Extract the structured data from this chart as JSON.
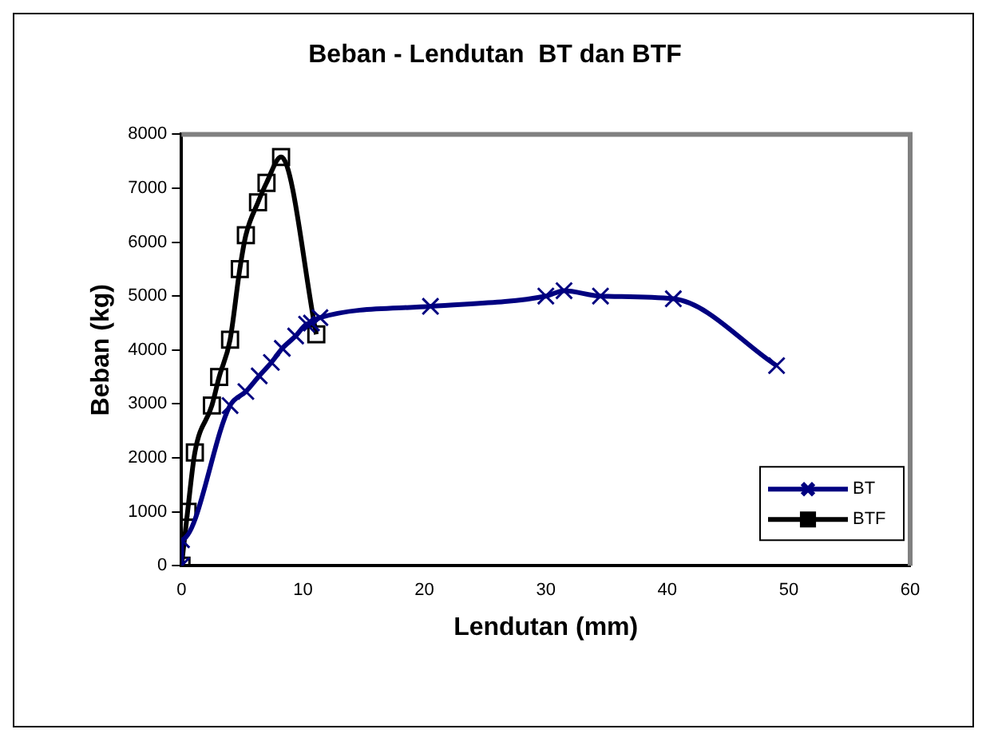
{
  "chart_data": {
    "type": "line",
    "title": "Beban - Lendutan  BT dan BTF",
    "xlabel": "Lendutan (mm)",
    "ylabel": "Beban (kg)",
    "xlim": [
      0,
      60
    ],
    "xticks": [
      0,
      10,
      20,
      30,
      40,
      50,
      60
    ],
    "ylim": [
      0,
      8000
    ],
    "yticks": [
      0,
      1000,
      2000,
      3000,
      4000,
      5000,
      6000,
      7000,
      8000
    ],
    "grid": false,
    "legend": "bottom right",
    "series": [
      {
        "name": "BT",
        "color": "#000080",
        "marker": "cross",
        "x": [
          0,
          0,
          4,
          5.3,
          6.4,
          7.4,
          8.3,
          9.4,
          10.3,
          10.7,
          11.4,
          20.5,
          30,
          31.5,
          34.5,
          40.5,
          49
        ],
        "values": [
          0,
          480,
          2970,
          3230,
          3520,
          3770,
          4030,
          4260,
          4480,
          4500,
          4600,
          4810,
          5000,
          5100,
          5000,
          4950,
          3710
        ]
      },
      {
        "name": "BTF",
        "color": "#000000",
        "marker": "square",
        "x": [
          0,
          0.5,
          1.1,
          2.5,
          3.1,
          4,
          4.8,
          5.3,
          6.3,
          7,
          8.2,
          11.1
        ],
        "values": [
          0,
          1000,
          2100,
          2970,
          3500,
          4190,
          5500,
          6130,
          6740,
          7100,
          7580,
          4290
        ]
      }
    ]
  }
}
